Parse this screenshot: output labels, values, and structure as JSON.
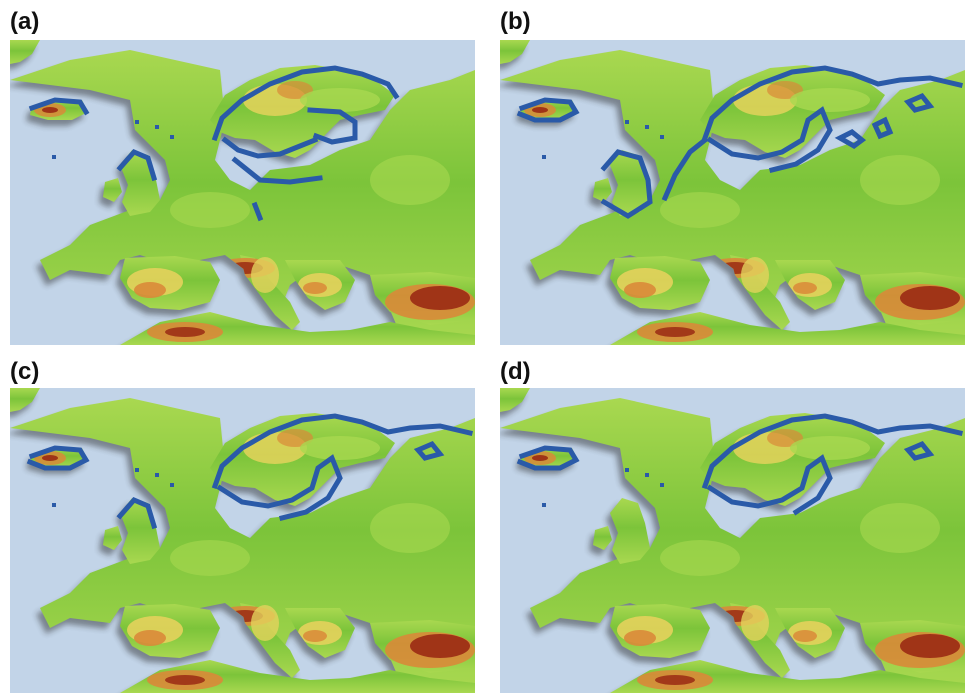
{
  "figure": {
    "panels": [
      {
        "id": "a",
        "label": "(a)"
      },
      {
        "id": "b",
        "label": "(b)"
      },
      {
        "id": "c",
        "label": "(c)"
      },
      {
        "id": "d",
        "label": "(d)"
      }
    ]
  },
  "colors": {
    "sea": "#c2d4e8",
    "lowland": "#7cc43a",
    "plain": "#a9d850",
    "hills": "#e4d25c",
    "highland": "#d98a38",
    "mountain": "#9a2a14",
    "outline": "#2a5aa8"
  }
}
